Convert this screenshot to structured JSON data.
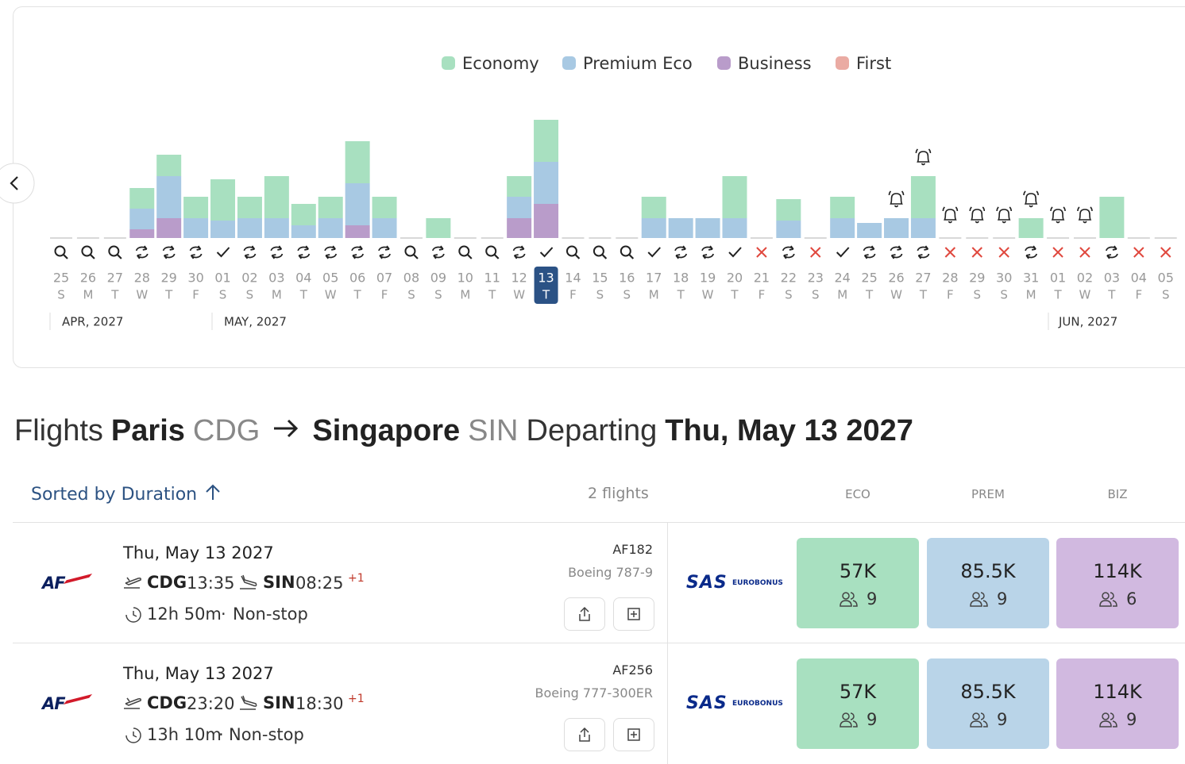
{
  "chart_data": {
    "type": "bar",
    "stacked": true,
    "categories": [
      "25",
      "26",
      "27",
      "28",
      "29",
      "30",
      "01",
      "02",
      "03",
      "04",
      "05",
      "06",
      "07",
      "08",
      "09",
      "10",
      "11",
      "12",
      "13",
      "14",
      "15",
      "16",
      "17",
      "18",
      "19",
      "20",
      "21",
      "22",
      "23",
      "24",
      "25",
      "26",
      "27",
      "28",
      "29",
      "30",
      "31",
      "01",
      "02",
      "03",
      "04",
      "05"
    ],
    "weekdays": [
      "S",
      "M",
      "T",
      "W",
      "T",
      "F",
      "S",
      "S",
      "M",
      "T",
      "W",
      "T",
      "F",
      "S",
      "S",
      "M",
      "T",
      "W",
      "T",
      "F",
      "S",
      "S",
      "M",
      "T",
      "W",
      "T",
      "F",
      "S",
      "S",
      "M",
      "T",
      "W",
      "T",
      "F",
      "S",
      "S",
      "M",
      "T",
      "W",
      "T",
      "F",
      "S"
    ],
    "months": [
      "APR, 2027",
      "MAY, 2027",
      "JUN, 2027"
    ],
    "series": [
      {
        "name": "Economy",
        "color": "#a8e0c0",
        "values": [
          0,
          0,
          0,
          26,
          27,
          27,
          52,
          27,
          53,
          27,
          27,
          53,
          27,
          0,
          25,
          0,
          0,
          26,
          53,
          0,
          0,
          0,
          27,
          0,
          0,
          53,
          0,
          27,
          0,
          27,
          0,
          0,
          53,
          0,
          0,
          0,
          25,
          0,
          0,
          52,
          0,
          0
        ]
      },
      {
        "name": "Premium Eco",
        "color": "#a8c9e3",
        "values": [
          0,
          0,
          0,
          26,
          53,
          25,
          22,
          25,
          25,
          16,
          25,
          53,
          25,
          0,
          0,
          0,
          0,
          27,
          53,
          0,
          0,
          0,
          25,
          25,
          25,
          25,
          0,
          22,
          0,
          25,
          19,
          25,
          25,
          0,
          0,
          0,
          0,
          0,
          0,
          0,
          0,
          0
        ]
      },
      {
        "name": "Business",
        "color": "#b99cca",
        "values": [
          0,
          0,
          0,
          11,
          25,
          0,
          0,
          0,
          0,
          0,
          0,
          16,
          0,
          0,
          0,
          0,
          0,
          25,
          43,
          0,
          0,
          0,
          0,
          0,
          0,
          0,
          0,
          0,
          0,
          0,
          0,
          0,
          0,
          0,
          0,
          0,
          0,
          0,
          0,
          0,
          0,
          0
        ]
      },
      {
        "name": "First",
        "color": "#eaaba3",
        "values": [
          0,
          0,
          0,
          0,
          0,
          0,
          0,
          0,
          0,
          0,
          0,
          0,
          0,
          0,
          0,
          0,
          0,
          0,
          0,
          0,
          0,
          0,
          0,
          0,
          0,
          0,
          0,
          0,
          0,
          0,
          0,
          0,
          0,
          0,
          0,
          0,
          0,
          0,
          0,
          0,
          0,
          0
        ]
      }
    ],
    "ylim": [
      0,
      160
    ]
  },
  "flights_header": {
    "prefix": "Flights",
    "origin_city": "Paris",
    "origin_code": "CDG",
    "dest_city": "Singapore",
    "dest_code": "SIN",
    "label": "Departing",
    "date": "Thu, May 13 2027"
  },
  "sort": {
    "label": "Sorted by Duration",
    "count": "2 flights",
    "columns": [
      "ECO",
      "PREM",
      "BIZ"
    ]
  },
  "flights": [
    {
      "airline": "AF",
      "date": "Thu, May 13 2027",
      "from": "CDG",
      "dep": "13:35",
      "to": "SIN",
      "arr": "08:25",
      "day_offset": "+1",
      "duration": "12h 50m",
      "stops": "Non-stop",
      "flight": "AF182",
      "aircraft": "Boeing 787-9",
      "program": "SAS",
      "program_sub": "EUROBONUS",
      "fares": [
        {
          "price": "57K",
          "seats": 9
        },
        {
          "price": "85.5K",
          "seats": 9
        },
        {
          "price": "114K",
          "seats": 6
        }
      ]
    },
    {
      "airline": "AF",
      "date": "Thu, May 13 2027",
      "from": "CDG",
      "dep": "23:20",
      "to": "SIN",
      "arr": "18:30",
      "day_offset": "+1",
      "duration": "13h 10m",
      "stops": "Non-stop",
      "flight": "AF256",
      "aircraft": "Boeing 777-300ER",
      "program": "SAS",
      "program_sub": "EUROBONUS",
      "fares": [
        {
          "price": "57K",
          "seats": 9
        },
        {
          "price": "85.5K",
          "seats": 9
        },
        {
          "price": "114K",
          "seats": 9
        }
      ]
    }
  ]
}
